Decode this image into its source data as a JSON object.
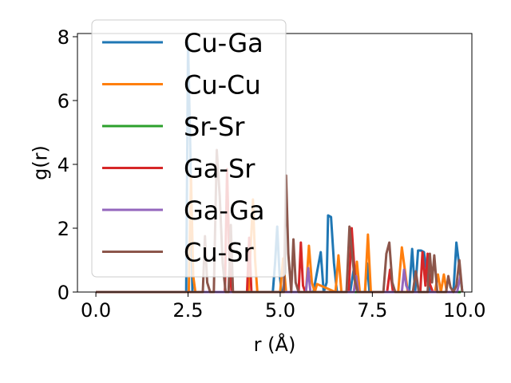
{
  "chart_data": {
    "type": "line",
    "title": "",
    "xlabel": "r (Å)",
    "ylabel": "g(r)",
    "xlim": [
      -0.5,
      10.2
    ],
    "ylim": [
      0,
      8.1
    ],
    "xticks": [
      0.0,
      2.5,
      5.0,
      7.5,
      10.0
    ],
    "xtick_labels": [
      "0.0",
      "2.5",
      "5.0",
      "7.5",
      "10.0"
    ],
    "yticks": [
      0,
      2,
      4,
      6,
      8
    ],
    "ytick_labels": [
      "0",
      "2",
      "4",
      "6",
      "8"
    ],
    "grid": false,
    "legend_position": "upper-left",
    "series": [
      {
        "name": "Cu-Ga",
        "color": "#1f77b4",
        "x": [
          0,
          2.45,
          2.5,
          2.56,
          2.62,
          4.8,
          4.86,
          4.92,
          4.98,
          5.04,
          5.9,
          6.1,
          6.18,
          6.26,
          6.3,
          6.38,
          6.46,
          6.54,
          6.9,
          7.0,
          7.1,
          7.3,
          7.36,
          7.42,
          8.5,
          8.58,
          8.66,
          8.74,
          8.82,
          8.9,
          9.0,
          9.06,
          9.7,
          9.78,
          9.86,
          9.94
        ],
        "y": [
          0,
          0,
          7.8,
          4.5,
          0,
          0,
          0.9,
          2.05,
          0.6,
          0,
          0,
          1.25,
          0,
          0.3,
          2.4,
          2.35,
          0.9,
          0,
          0,
          0.75,
          0,
          0,
          0.9,
          0,
          0,
          1.35,
          0,
          1.3,
          1.3,
          1.25,
          0.4,
          0,
          0,
          1.55,
          0.8,
          0
        ]
      },
      {
        "name": "Cu-Cu",
        "color": "#ff7f0e",
        "x": [
          0,
          2.52,
          2.58,
          2.64,
          2.7,
          4.14,
          4.2,
          4.26,
          4.32,
          4.38,
          5.0,
          5.08,
          5.16,
          5.7,
          5.78,
          5.86,
          5.94,
          6.0,
          6.5,
          6.58,
          6.66,
          7.0,
          7.08,
          7.16,
          7.3,
          7.38,
          7.46,
          8.2,
          8.3,
          8.38,
          8.46,
          9.2,
          9.28,
          9.36,
          9.44,
          9.52
        ],
        "y": [
          0,
          0,
          3.6,
          0.5,
          0,
          0,
          1.4,
          2.9,
          1.0,
          0,
          0,
          1.05,
          0,
          0,
          1.45,
          0.3,
          0,
          0.25,
          0,
          1.15,
          0,
          0,
          0.95,
          0,
          0,
          1.8,
          0,
          0,
          1.4,
          0.7,
          0,
          0,
          0.55,
          0,
          0.55,
          0
        ]
      },
      {
        "name": "Sr-Sr",
        "color": "#2ca02c",
        "x": [
          0,
          9.9
        ],
        "y": [
          0,
          0
        ]
      },
      {
        "name": "Ga-Sr",
        "color": "#d62728",
        "x": [
          0,
          3.5,
          3.56,
          3.62,
          3.68,
          4.1,
          4.16,
          4.22,
          5.5,
          5.56,
          5.62,
          5.68,
          6.86,
          6.94,
          7.02,
          7.1,
          7.9,
          7.98,
          8.06,
          8.8,
          8.86,
          8.94,
          9.0,
          9.06,
          9.14
        ],
        "y": [
          0,
          0,
          3.85,
          1.0,
          0,
          0,
          1.7,
          0,
          0,
          1.55,
          0.2,
          0,
          0,
          2.0,
          0.6,
          0,
          0,
          0.7,
          0,
          0,
          1.25,
          0.2,
          1.2,
          0.25,
          0
        ]
      },
      {
        "name": "Ga-Ga",
        "color": "#9467bd",
        "x": [
          0,
          5.7,
          5.76,
          5.82,
          7.0,
          7.06,
          7.12,
          8.3,
          8.36,
          8.42,
          8.5,
          9.8,
          9.9
        ],
        "y": [
          0,
          0,
          0.75,
          0,
          0,
          0.5,
          0,
          0,
          0.7,
          0.2,
          0,
          0,
          0.55
        ]
      },
      {
        "name": "Cu-Sr",
        "color": "#8c564b",
        "x": [
          0,
          2.9,
          2.96,
          3.02,
          3.1,
          3.2,
          3.28,
          3.36,
          3.44,
          3.52,
          3.6,
          3.66,
          3.72,
          5.1,
          5.16,
          5.22,
          5.3,
          5.36,
          5.42,
          5.5,
          6.8,
          6.88,
          6.96,
          7.02,
          7.1,
          7.8,
          7.88,
          7.96,
          8.04,
          8.12,
          8.6,
          8.68,
          8.76,
          9.0,
          9.06,
          9.12,
          9.18,
          9.26,
          9.5,
          9.56,
          9.62,
          9.7,
          9.78,
          9.86,
          9.94
        ],
        "y": [
          0,
          0,
          1.75,
          0.3,
          0,
          0,
          4.45,
          3.0,
          0.9,
          0,
          0,
          2.1,
          0,
          0,
          3.65,
          1.2,
          0,
          1.65,
          0.3,
          0,
          0,
          2.05,
          1.1,
          0.4,
          0,
          0,
          1.2,
          1.55,
          0.3,
          0,
          0,
          0.65,
          0,
          0,
          1.2,
          0.3,
          1.15,
          0,
          0,
          0.5,
          0.15,
          0,
          0.2,
          1.0,
          0
        ]
      }
    ]
  }
}
